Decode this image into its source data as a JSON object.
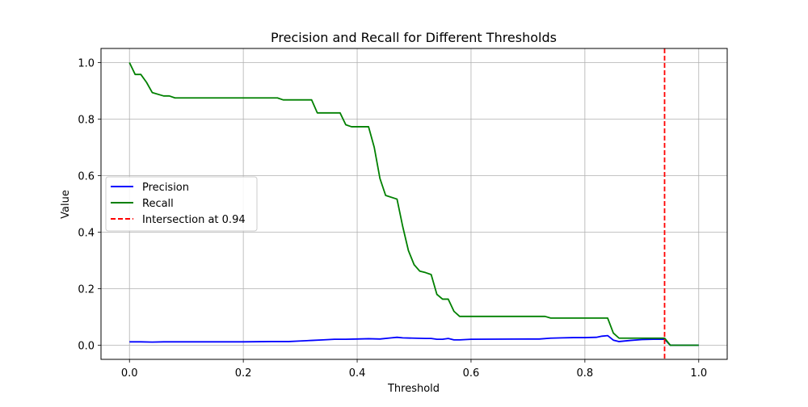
{
  "chart_data": {
    "type": "line",
    "title": "Precision and Recall for Different Thresholds",
    "xlabel": "Threshold",
    "ylabel": "Value",
    "xlim": [
      -0.05,
      1.05
    ],
    "ylim": [
      -0.05,
      1.05
    ],
    "xticks": [
      0.0,
      0.2,
      0.4,
      0.6,
      0.8,
      1.0
    ],
    "xtick_labels": [
      "0.0",
      "0.2",
      "0.4",
      "0.6",
      "0.8",
      "1.0"
    ],
    "yticks": [
      0.0,
      0.2,
      0.4,
      0.6,
      0.8,
      1.0
    ],
    "ytick_labels": [
      "0.0",
      "0.2",
      "0.4",
      "0.6",
      "0.8",
      "1.0"
    ],
    "grid": true,
    "legend_position": "center-left",
    "series": [
      {
        "name": "Precision",
        "color": "#0000ff",
        "x": [
          0.0,
          0.02,
          0.04,
          0.06,
          0.08,
          0.1,
          0.2,
          0.25,
          0.28,
          0.3,
          0.32,
          0.34,
          0.36,
          0.38,
          0.4,
          0.42,
          0.44,
          0.46,
          0.47,
          0.48,
          0.5,
          0.52,
          0.53,
          0.54,
          0.55,
          0.56,
          0.57,
          0.58,
          0.6,
          0.7,
          0.72,
          0.74,
          0.76,
          0.78,
          0.8,
          0.82,
          0.83,
          0.84,
          0.85,
          0.86,
          0.88,
          0.9,
          0.92,
          0.94,
          0.95,
          1.0
        ],
        "y": [
          0.012,
          0.012,
          0.011,
          0.012,
          0.012,
          0.012,
          0.012,
          0.013,
          0.013,
          0.015,
          0.017,
          0.019,
          0.021,
          0.021,
          0.022,
          0.023,
          0.022,
          0.026,
          0.028,
          0.026,
          0.025,
          0.024,
          0.024,
          0.021,
          0.021,
          0.024,
          0.019,
          0.019,
          0.021,
          0.022,
          0.022,
          0.025,
          0.026,
          0.027,
          0.027,
          0.028,
          0.032,
          0.034,
          0.018,
          0.013,
          0.017,
          0.02,
          0.021,
          0.021,
          0.0,
          0.0
        ]
      },
      {
        "name": "Recall",
        "color": "#008000",
        "x": [
          0.0,
          0.01,
          0.02,
          0.03,
          0.04,
          0.06,
          0.07,
          0.08,
          0.1,
          0.2,
          0.26,
          0.27,
          0.3,
          0.32,
          0.33,
          0.37,
          0.38,
          0.39,
          0.4,
          0.42,
          0.43,
          0.44,
          0.45,
          0.47,
          0.48,
          0.49,
          0.5,
          0.51,
          0.52,
          0.53,
          0.54,
          0.55,
          0.56,
          0.57,
          0.58,
          0.6,
          0.7,
          0.73,
          0.74,
          0.8,
          0.84,
          0.85,
          0.86,
          0.9,
          0.94,
          0.95,
          1.0
        ],
        "y": [
          1.0,
          0.958,
          0.958,
          0.93,
          0.894,
          0.882,
          0.882,
          0.875,
          0.875,
          0.875,
          0.875,
          0.868,
          0.868,
          0.868,
          0.822,
          0.822,
          0.78,
          0.773,
          0.773,
          0.773,
          0.7,
          0.59,
          0.53,
          0.517,
          0.42,
          0.335,
          0.285,
          0.262,
          0.257,
          0.25,
          0.18,
          0.163,
          0.163,
          0.12,
          0.102,
          0.102,
          0.102,
          0.102,
          0.096,
          0.096,
          0.096,
          0.043,
          0.025,
          0.025,
          0.025,
          0.0,
          0.0
        ]
      }
    ],
    "annotations": [
      {
        "type": "vline",
        "x": 0.94,
        "color": "#ff0000",
        "style": "dashed",
        "label": "Intersection at 0.94"
      }
    ]
  }
}
